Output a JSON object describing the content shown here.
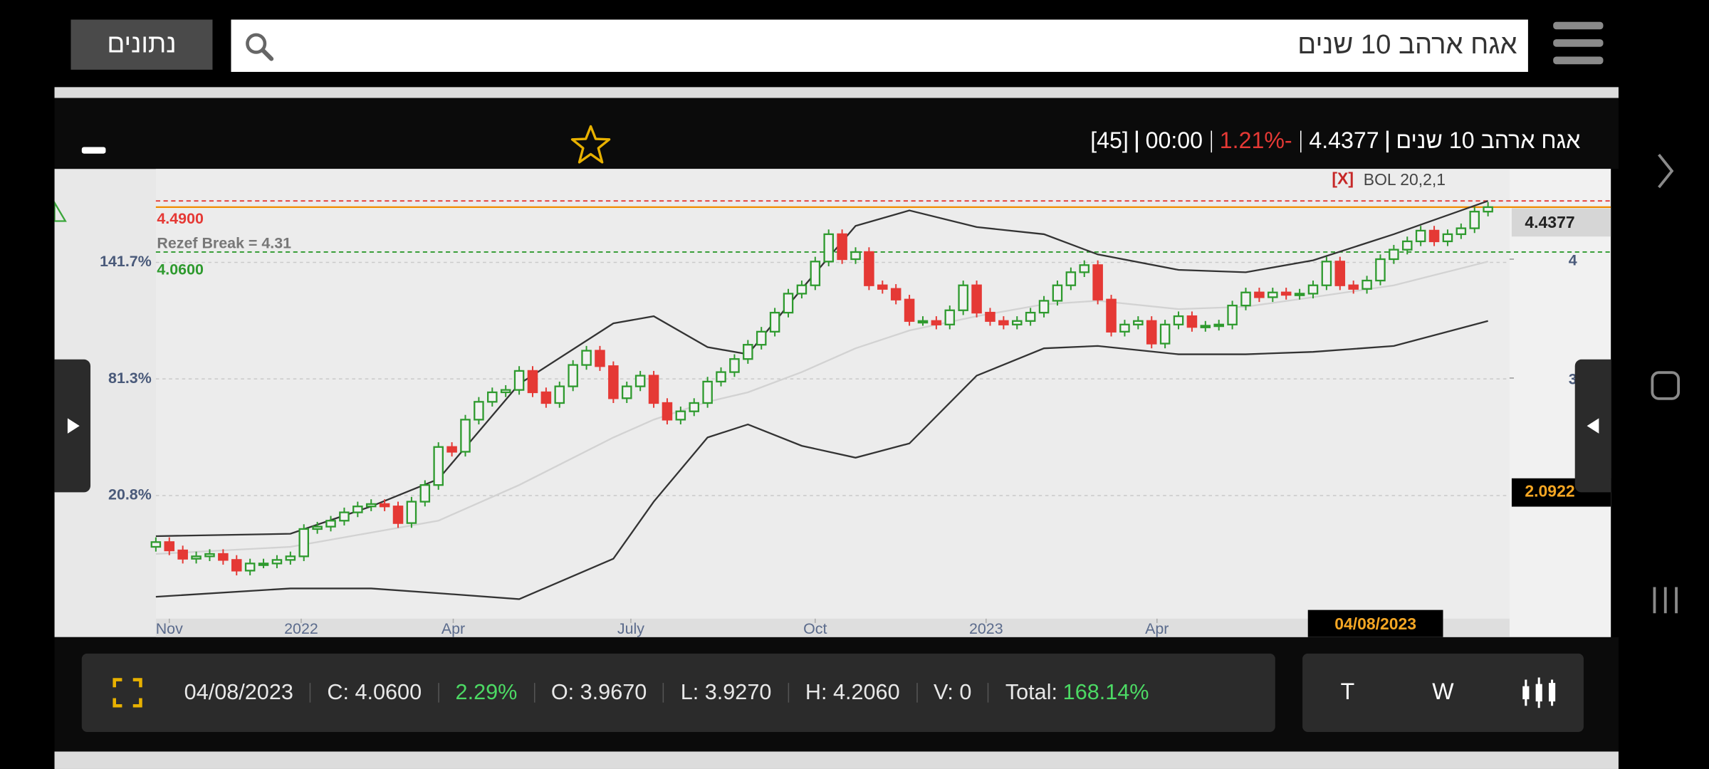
{
  "header": {
    "search_text": "אגח ארהב 10 שנים",
    "button": "נתונים"
  },
  "quote": {
    "name": "אגח ארהב 10 שנים",
    "price": "4.4377",
    "change": "1.21%-",
    "time": "00:00",
    "count": "[45]"
  },
  "chart_data": {
    "type": "candlestick",
    "indicator_close": "[X]",
    "indicator": "BOL 20,2,1",
    "annotation": "Rezef Break = 4.31",
    "up_color": "#2e9a2e",
    "down_color": "#e53935",
    "open": [
      1.58,
      1.62,
      1.55,
      1.48,
      1.5,
      1.52,
      1.47,
      1.38,
      1.44,
      1.44,
      1.47,
      1.5,
      1.73,
      1.75,
      1.8,
      1.87,
      1.92,
      1.94,
      1.92,
      1.78,
      1.96,
      2.1,
      2.42,
      2.38,
      2.65,
      2.8,
      2.88,
      2.9,
      3.06,
      2.88,
      2.79,
      2.93,
      3.11,
      3.23,
      3.1,
      2.83,
      2.93,
      3.02,
      2.79,
      2.65,
      2.72,
      2.79,
      2.97,
      3.05,
      3.16,
      3.28,
      3.39,
      3.55,
      3.71,
      3.78,
      3.98,
      4.21,
      4.0,
      4.06,
      3.78,
      3.75,
      3.66,
      3.48,
      3.48,
      3.45,
      3.57,
      3.78,
      3.55,
      3.48,
      3.45,
      3.48,
      3.55,
      3.65,
      3.78,
      3.89,
      3.95,
      3.66,
      3.39,
      3.45,
      3.48,
      3.29,
      3.45,
      3.52,
      3.43,
      3.44,
      3.45,
      3.61,
      3.72,
      3.68,
      3.72,
      3.7,
      3.71,
      3.78,
      3.98,
      3.78,
      3.75,
      3.82,
      4.0,
      4.08,
      4.15,
      4.24,
      4.15,
      4.21,
      4.26,
      4.4
    ],
    "high": [
      1.66,
      1.66,
      1.59,
      1.54,
      1.56,
      1.56,
      1.51,
      1.48,
      1.48,
      1.51,
      1.54,
      1.77,
      1.79,
      1.84,
      1.91,
      1.96,
      1.98,
      1.98,
      1.96,
      2.0,
      2.14,
      2.46,
      2.46,
      2.69,
      2.84,
      2.92,
      2.94,
      3.1,
      3.1,
      2.92,
      2.97,
      3.15,
      3.27,
      3.27,
      3.14,
      2.97,
      3.06,
      3.06,
      2.83,
      2.76,
      2.83,
      3.01,
      3.09,
      3.2,
      3.32,
      3.43,
      3.59,
      3.75,
      3.82,
      4.02,
      4.25,
      4.25,
      4.1,
      4.1,
      3.82,
      3.79,
      3.7,
      3.52,
      3.52,
      3.61,
      3.82,
      3.82,
      3.59,
      3.52,
      3.52,
      3.59,
      3.69,
      3.82,
      3.93,
      3.99,
      3.99,
      3.7,
      3.49,
      3.52,
      3.52,
      3.49,
      3.56,
      3.56,
      3.48,
      3.49,
      3.65,
      3.76,
      3.76,
      3.76,
      3.76,
      3.75,
      3.82,
      4.02,
      4.02,
      3.82,
      3.86,
      4.04,
      4.12,
      4.19,
      4.28,
      4.28,
      4.25,
      4.3,
      4.44,
      4.48
    ],
    "low": [
      1.54,
      1.51,
      1.44,
      1.44,
      1.46,
      1.43,
      1.34,
      1.34,
      1.4,
      1.4,
      1.43,
      1.46,
      1.69,
      1.71,
      1.76,
      1.83,
      1.88,
      1.88,
      1.74,
      1.74,
      1.92,
      2.06,
      2.34,
      2.34,
      2.61,
      2.76,
      2.84,
      2.86,
      2.84,
      2.75,
      2.75,
      2.89,
      3.07,
      3.06,
      2.79,
      2.79,
      2.89,
      2.75,
      2.61,
      2.61,
      2.68,
      2.75,
      2.93,
      3.01,
      3.12,
      3.24,
      3.35,
      3.51,
      3.67,
      3.74,
      3.94,
      3.96,
      3.96,
      3.74,
      3.71,
      3.62,
      3.44,
      3.44,
      3.41,
      3.41,
      3.53,
      3.51,
      3.44,
      3.41,
      3.41,
      3.44,
      3.51,
      3.61,
      3.74,
      3.85,
      3.62,
      3.35,
      3.35,
      3.41,
      3.25,
      3.25,
      3.41,
      3.39,
      3.39,
      3.4,
      3.41,
      3.57,
      3.64,
      3.64,
      3.66,
      3.66,
      3.67,
      3.74,
      3.74,
      3.71,
      3.71,
      3.78,
      3.96,
      4.04,
      4.11,
      4.11,
      4.11,
      4.17,
      4.22,
      4.36
    ],
    "close": [
      1.62,
      1.55,
      1.48,
      1.5,
      1.52,
      1.47,
      1.38,
      1.44,
      1.44,
      1.47,
      1.5,
      1.73,
      1.75,
      1.8,
      1.87,
      1.92,
      1.94,
      1.92,
      1.78,
      1.96,
      2.1,
      2.42,
      2.38,
      2.65,
      2.8,
      2.88,
      2.9,
      3.06,
      2.88,
      2.79,
      2.93,
      3.11,
      3.23,
      3.1,
      2.83,
      2.93,
      3.02,
      2.79,
      2.65,
      2.72,
      2.79,
      2.97,
      3.05,
      3.16,
      3.28,
      3.39,
      3.55,
      3.71,
      3.78,
      3.98,
      4.21,
      4.0,
      4.06,
      3.78,
      3.75,
      3.66,
      3.48,
      3.48,
      3.45,
      3.57,
      3.78,
      3.55,
      3.48,
      3.45,
      3.48,
      3.55,
      3.65,
      3.78,
      3.89,
      3.95,
      3.66,
      3.39,
      3.45,
      3.48,
      3.29,
      3.45,
      3.52,
      3.43,
      3.44,
      3.45,
      3.61,
      3.72,
      3.68,
      3.72,
      3.7,
      3.71,
      3.78,
      3.98,
      3.78,
      3.75,
      3.82,
      4.0,
      4.08,
      4.15,
      4.24,
      4.15,
      4.21,
      4.26,
      4.4,
      4.4377
    ],
    "bollinger": {
      "x": [
        0,
        10,
        16,
        21,
        27,
        34,
        37,
        41,
        44,
        48,
        52,
        56,
        61,
        66,
        70,
        76,
        81,
        86,
        92,
        99
      ],
      "upper": [
        1.67,
        1.69,
        1.92,
        2.15,
        2.95,
        3.46,
        3.52,
        3.26,
        3.2,
        3.75,
        4.28,
        4.41,
        4.27,
        4.21,
        4.04,
        3.91,
        3.89,
        3.99,
        4.21,
        4.49
      ],
      "middle": [
        1.52,
        1.58,
        1.7,
        1.8,
        2.1,
        2.5,
        2.65,
        2.8,
        2.88,
        3.05,
        3.25,
        3.4,
        3.52,
        3.62,
        3.65,
        3.58,
        3.6,
        3.68,
        3.78,
        3.98
      ],
      "lower": [
        1.16,
        1.23,
        1.23,
        1.19,
        1.14,
        1.48,
        1.96,
        2.5,
        2.61,
        2.43,
        2.33,
        2.45,
        3.02,
        3.25,
        3.27,
        3.2,
        3.2,
        3.22,
        3.27,
        3.48
      ]
    },
    "levels": [
      {
        "value": 4.49,
        "label": "4.4900",
        "color": "#e53935"
      },
      {
        "value": 4.06,
        "label": "4.0600",
        "color": "#2e9a2e"
      }
    ],
    "last_price_color": "#f08c00",
    "cursor_value": 2.0922,
    "cursor_date": "04/08/2023",
    "xlim": [
      0,
      100.6
    ],
    "xticks": [
      {
        "value": 1,
        "label": "Nov"
      },
      {
        "value": 10.8,
        "label": "2022"
      },
      {
        "value": 22.1,
        "label": "Apr"
      },
      {
        "value": 35.3,
        "label": "July"
      },
      {
        "value": 49,
        "label": "Oct"
      },
      {
        "value": 61.7,
        "label": "2023"
      },
      {
        "value": 74.4,
        "label": "Apr"
      }
    ],
    "ylim": [
      0.82,
      4.76
    ],
    "yticks": [
      3,
      4
    ],
    "y2lim": [
      -52.6,
      190.2
    ],
    "y2ticks": [
      {
        "value": 20.8,
        "label": "20.8%"
      },
      {
        "value": 81.3,
        "label": "81.3%"
      },
      {
        "value": 141.7,
        "label": "141.7%"
      }
    ],
    "grid": true
  },
  "info_bar": {
    "date": "04/08/2023",
    "close": "C: 4.0600",
    "change": "2.29%",
    "open": "O: 3.9670",
    "low": "L: 3.9270",
    "high": "H: 4.2060",
    "volume": "V: 0",
    "total_label": "Total:",
    "total": "168.14%"
  },
  "period_buttons": [
    "T",
    "W"
  ]
}
